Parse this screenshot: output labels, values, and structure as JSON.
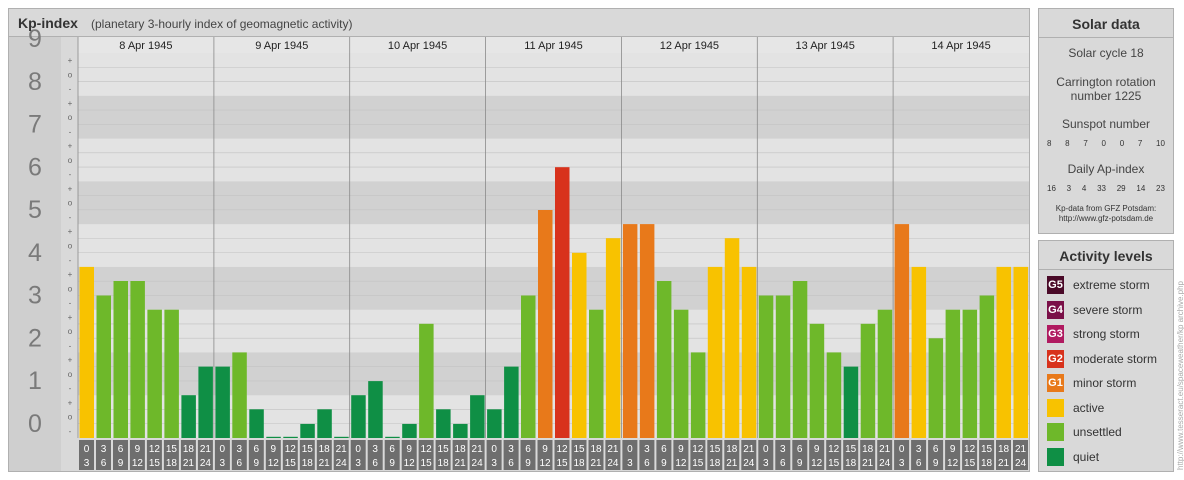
{
  "title": {
    "main": "Kp-index",
    "sub": "(planetary 3-hourly index of geomagnetic activity)"
  },
  "chart_data": {
    "type": "bar",
    "ylim": [
      0,
      9
    ],
    "y_ticks": [
      "0",
      "1",
      "2",
      "3",
      "4",
      "5",
      "6",
      "7",
      "8",
      "9"
    ],
    "sub_ticks": [
      "-",
      "o",
      "+"
    ],
    "days": [
      "8 Apr 1945",
      "9 Apr 1945",
      "10 Apr 1945",
      "11 Apr 1945",
      "12 Apr 1945",
      "13 Apr 1945",
      "14 Apr 1945"
    ],
    "interval_starts": [
      "0",
      "3",
      "6",
      "9",
      "12",
      "15",
      "18",
      "21"
    ],
    "interval_ends": [
      "3",
      "6",
      "9",
      "12",
      "15",
      "18",
      "21",
      "24"
    ],
    "values": [
      [
        4.0,
        3.33,
        3.67,
        3.67,
        3.0,
        3.0,
        1.0,
        1.67
      ],
      [
        1.67,
        2.0,
        0.67,
        0.0,
        0.0,
        0.33,
        0.67,
        0.0
      ],
      [
        1.0,
        1.33,
        0.0,
        0.33,
        2.67,
        0.67,
        0.33,
        1.0
      ],
      [
        0.67,
        1.67,
        3.33,
        5.33,
        6.33,
        4.33,
        3.0,
        4.67
      ],
      [
        5.0,
        5.0,
        3.67,
        3.0,
        2.0,
        4.0,
        4.67,
        4.0
      ],
      [
        3.33,
        3.33,
        3.67,
        2.67,
        2.0,
        1.67,
        2.67,
        3.0
      ],
      [
        5.0,
        4.0,
        2.33,
        3.0,
        3.0,
        3.33,
        4.0,
        4.0
      ]
    ],
    "colors": {
      "quiet": "#0f8f45",
      "unsettled": "#6eb82a",
      "active": "#f8c200",
      "minor_storm": "#e8791a",
      "moderate_storm": "#d8321c"
    }
  },
  "solar": {
    "title": "Solar data",
    "cycle": "Solar cycle 18",
    "carrington_line1": "Carrington rotation",
    "carrington_line2": "number 1225",
    "sunspot_label": "Sunspot number",
    "sunspot_values": [
      "8",
      "8",
      "7",
      "0",
      "0",
      "7",
      "10"
    ],
    "ap_label": "Daily Ap-index",
    "ap_values": [
      "16",
      "3",
      "4",
      "33",
      "29",
      "14",
      "23"
    ],
    "credit_line1": "Kp-data from GFZ Potsdam:",
    "credit_line2": "http://www.gfz-potsdam.de"
  },
  "levels": {
    "title": "Activity levels",
    "items": [
      {
        "code": "G5",
        "label": "extreme storm",
        "color": "#4a0a28"
      },
      {
        "code": "G4",
        "label": "severe storm",
        "color": "#7a1048"
      },
      {
        "code": "G3",
        "label": "strong storm",
        "color": "#b01a60"
      },
      {
        "code": "G2",
        "label": "moderate storm",
        "color": "#d8321c"
      },
      {
        "code": "G1",
        "label": "minor storm",
        "color": "#e8791a"
      },
      {
        "code": "",
        "label": "active",
        "color": "#f8c200"
      },
      {
        "code": "",
        "label": "unsettled",
        "color": "#6eb82a"
      },
      {
        "code": "",
        "label": "quiet",
        "color": "#0f8f45"
      }
    ]
  },
  "watermark": "http://www.tesseract.eu/spaceweather/kp archive.php"
}
